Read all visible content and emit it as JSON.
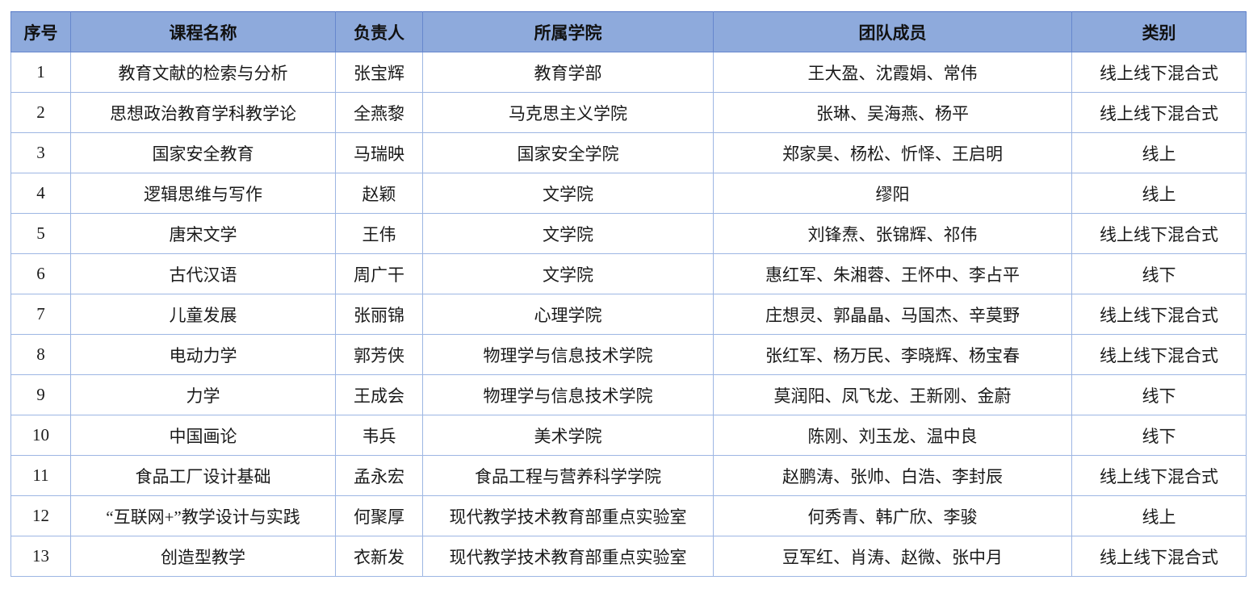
{
  "table": {
    "headers": [
      "序号",
      "课程名称",
      "负责人",
      "所属学院",
      "团队成员",
      "类别"
    ],
    "column_keys": [
      "seq",
      "course",
      "leader",
      "college",
      "members",
      "category"
    ],
    "rows": [
      {
        "seq": "1",
        "course": "教育文献的检索与分析",
        "leader": "张宝辉",
        "college": "教育学部",
        "members": "王大盈、沈霞娟、常伟",
        "category": "线上线下混合式"
      },
      {
        "seq": "2",
        "course": "思想政治教育学科教学论",
        "leader": "全燕黎",
        "college": "马克思主义学院",
        "members": "张琳、吴海燕、杨平",
        "category": "线上线下混合式"
      },
      {
        "seq": "3",
        "course": "国家安全教育",
        "leader": "马瑞映",
        "college": "国家安全学院",
        "members": "郑家昊、杨松、忻怿、王启明",
        "category": "线上"
      },
      {
        "seq": "4",
        "course": "逻辑思维与写作",
        "leader": "赵颖",
        "college": "文学院",
        "members": "缪阳",
        "category": "线上"
      },
      {
        "seq": "5",
        "course": "唐宋文学",
        "leader": "王伟",
        "college": "文学院",
        "members": "刘锋焘、张锦辉、祁伟",
        "category": "线上线下混合式"
      },
      {
        "seq": "6",
        "course": "古代汉语",
        "leader": "周广干",
        "college": "文学院",
        "members": "惠红军、朱湘蓉、王怀中、李占平",
        "category": "线下"
      },
      {
        "seq": "7",
        "course": "儿童发展",
        "leader": "张丽锦",
        "college": "心理学院",
        "members": "庄想灵、郭晶晶、马国杰、辛莫野",
        "category": "线上线下混合式"
      },
      {
        "seq": "8",
        "course": "电动力学",
        "leader": "郭芳侠",
        "college": "物理学与信息技术学院",
        "members": "张红军、杨万民、李晓辉、杨宝春",
        "category": "线上线下混合式"
      },
      {
        "seq": "9",
        "course": "力学",
        "leader": "王成会",
        "college": "物理学与信息技术学院",
        "members": "莫润阳、凤飞龙、王新刚、金蔚",
        "category": "线下"
      },
      {
        "seq": "10",
        "course": "中国画论",
        "leader": "韦兵",
        "college": "美术学院",
        "members": "陈刚、刘玉龙、温中良",
        "category": "线下"
      },
      {
        "seq": "11",
        "course": "食品工厂设计基础",
        "leader": "孟永宏",
        "college": "食品工程与营养科学学院",
        "members": "赵鹏涛、张帅、白浩、李封辰",
        "category": "线上线下混合式"
      },
      {
        "seq": "12",
        "course": "“互联网+”教学设计与实践",
        "leader": "何聚厚",
        "college": "现代教学技术教育部重点实验室",
        "members": "何秀青、韩广欣、李骏",
        "category": "线上"
      },
      {
        "seq": "13",
        "course": "创造型教学",
        "leader": "衣新发",
        "college": "现代教学技术教育部重点实验室",
        "members": "豆军红、肖涛、赵微、张中月",
        "category": "线上线下混合式"
      }
    ],
    "colors": {
      "header_bg": "#8eaadc",
      "header_border": "#6687cd",
      "body_border": "#9db6e3",
      "text": "#1a1a1a"
    }
  }
}
